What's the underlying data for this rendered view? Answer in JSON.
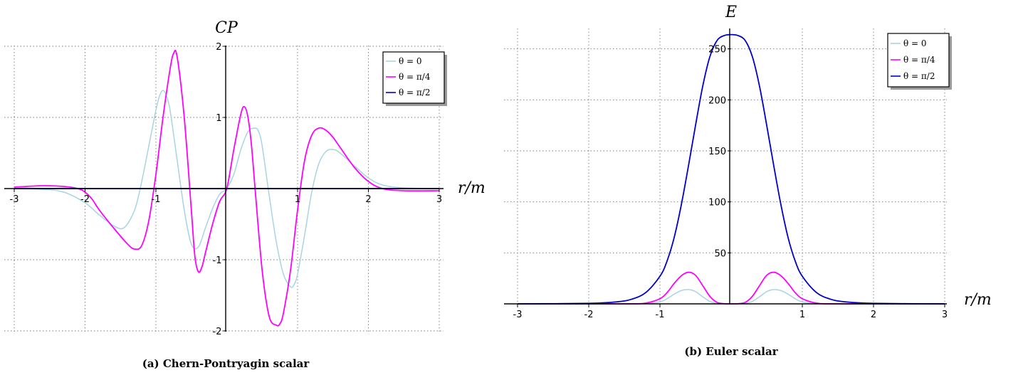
{
  "chart_data": [
    {
      "type": "line",
      "title": "CP",
      "xlabel": "r/m",
      "caption": "(a) Chern-Pontryagin scalar",
      "xlim": [
        -3,
        3
      ],
      "ylim": [
        -2,
        2
      ],
      "x_ticks": [
        "-3",
        "-2",
        "-1",
        "1",
        "2",
        "3"
      ],
      "y_ticks": [
        "2",
        "1",
        "-1",
        "-2"
      ],
      "grid": true,
      "legend_position": "top-right",
      "series": [
        {
          "name": "θ = 0",
          "color": "#a8d4e2",
          "x": [
            -3.0,
            -2.6,
            -2.3,
            -2.0,
            -1.8,
            -1.6,
            -1.45,
            -1.3,
            -1.2,
            -1.1,
            -1.0,
            -0.95,
            -0.9,
            -0.85,
            -0.8,
            -0.7,
            -0.6,
            -0.5,
            -0.4,
            -0.3,
            -0.2,
            -0.1,
            0.0,
            0.1,
            0.2,
            0.3,
            0.4,
            0.45,
            0.5,
            0.6,
            0.7,
            0.8,
            0.9,
            0.95,
            1.0,
            1.1,
            1.2,
            1.3,
            1.4,
            1.5,
            1.6,
            1.8,
            2.0,
            2.2,
            2.5,
            3.0
          ],
          "y": [
            0.0,
            -0.01,
            -0.05,
            -0.2,
            -0.37,
            -0.52,
            -0.55,
            -0.3,
            0.1,
            0.6,
            1.1,
            1.3,
            1.38,
            1.3,
            1.1,
            0.4,
            -0.3,
            -0.78,
            -0.82,
            -0.55,
            -0.28,
            -0.08,
            0.0,
            0.2,
            0.55,
            0.8,
            0.85,
            0.8,
            0.6,
            -0.1,
            -0.75,
            -1.2,
            -1.38,
            -1.35,
            -1.2,
            -0.65,
            -0.05,
            0.35,
            0.52,
            0.55,
            0.5,
            0.32,
            0.15,
            0.05,
            0.01,
            0.0
          ]
        },
        {
          "name": "θ = π/4",
          "color": "#ff00ff",
          "x": [
            -3.0,
            -2.6,
            -2.3,
            -2.1,
            -2.0,
            -1.9,
            -1.8,
            -1.6,
            -1.4,
            -1.3,
            -1.2,
            -1.1,
            -1.0,
            -0.9,
            -0.8,
            -0.75,
            -0.7,
            -0.6,
            -0.5,
            -0.45,
            -0.4,
            -0.35,
            -0.3,
            -0.2,
            -0.1,
            0.0,
            0.1,
            0.2,
            0.25,
            0.3,
            0.35,
            0.4,
            0.5,
            0.6,
            0.7,
            0.75,
            0.8,
            0.9,
            1.0,
            1.1,
            1.2,
            1.3,
            1.4,
            1.5,
            1.6,
            1.8,
            2.0,
            2.2,
            2.5,
            3.0
          ],
          "y": [
            0.02,
            0.04,
            0.03,
            0.0,
            -0.05,
            -0.15,
            -0.3,
            -0.55,
            -0.78,
            -0.85,
            -0.8,
            -0.45,
            0.2,
            1.0,
            1.68,
            1.9,
            1.85,
            1.0,
            -0.3,
            -0.95,
            -1.17,
            -1.1,
            -0.9,
            -0.5,
            -0.18,
            0.0,
            0.55,
            1.05,
            1.15,
            1.0,
            0.6,
            0.0,
            -1.15,
            -1.8,
            -1.92,
            -1.9,
            -1.75,
            -1.15,
            -0.3,
            0.4,
            0.75,
            0.85,
            0.82,
            0.72,
            0.58,
            0.3,
            0.1,
            0.0,
            -0.03,
            -0.03
          ]
        },
        {
          "name": "θ = π/2",
          "color": "#0000cc",
          "x": [
            -3.0,
            3.0
          ],
          "y": [
            0.0,
            0.0
          ]
        }
      ]
    },
    {
      "type": "line",
      "title": "E",
      "xlabel": "r/m",
      "caption": "(b) Euler scalar",
      "xlim": [
        -3,
        3
      ],
      "ylim": [
        0,
        270
      ],
      "x_ticks": [
        "-3",
        "-2",
        "-1",
        "1",
        "2",
        "3"
      ],
      "y_ticks": [
        "250",
        "200",
        "150",
        "100",
        "50"
      ],
      "grid": true,
      "legend_position": "top-right",
      "series": [
        {
          "name": "θ = 0",
          "color": "#a8d4e2",
          "x": [
            -3.0,
            -1.5,
            -1.2,
            -1.0,
            -0.9,
            -0.8,
            -0.7,
            -0.6,
            -0.5,
            -0.4,
            -0.3,
            -0.2,
            -0.1,
            0.0,
            0.1,
            0.2,
            0.3,
            0.4,
            0.5,
            0.6,
            0.7,
            0.8,
            0.9,
            1.0,
            1.2,
            1.5,
            3.0
          ],
          "y": [
            0.0,
            0.0,
            0.3,
            2.0,
            5.0,
            9.5,
            13.0,
            14.0,
            12.0,
            7.0,
            2.5,
            0.4,
            0.05,
            0.0,
            0.05,
            0.4,
            2.5,
            7.0,
            12.0,
            14.0,
            13.0,
            9.5,
            5.0,
            2.0,
            0.3,
            0.0,
            0.0
          ]
        },
        {
          "name": "θ = π/4",
          "color": "#ff00ff",
          "x": [
            -3.0,
            -1.5,
            -1.2,
            -1.0,
            -0.9,
            -0.8,
            -0.7,
            -0.6,
            -0.5,
            -0.4,
            -0.3,
            -0.2,
            -0.1,
            0.0,
            0.1,
            0.2,
            0.3,
            0.4,
            0.5,
            0.6,
            0.7,
            0.8,
            0.9,
            1.0,
            1.2,
            1.5,
            3.0
          ],
          "y": [
            0.0,
            0.0,
            0.8,
            5.0,
            11.0,
            20.0,
            27.5,
            31.0,
            28.0,
            18.0,
            7.5,
            1.5,
            0.2,
            0.0,
            0.2,
            1.5,
            7.5,
            18.0,
            28.0,
            31.0,
            27.5,
            20.0,
            11.0,
            5.0,
            0.8,
            0.0,
            0.0
          ]
        },
        {
          "name": "θ = π/2",
          "color": "#0000cc",
          "x": [
            -3.0,
            -2.0,
            -1.6,
            -1.4,
            -1.2,
            -1.0,
            -0.9,
            -0.8,
            -0.7,
            -0.6,
            -0.5,
            -0.4,
            -0.3,
            -0.2,
            -0.1,
            0.0,
            0.1,
            0.2,
            0.3,
            0.4,
            0.5,
            0.6,
            0.7,
            0.8,
            0.9,
            1.0,
            1.2,
            1.4,
            1.6,
            2.0,
            3.0
          ],
          "y": [
            0.0,
            0.5,
            2.0,
            4.5,
            11.0,
            27.0,
            42.0,
            65.0,
            97.0,
            135.0,
            175.0,
            213.0,
            242.0,
            258.0,
            263.0,
            264.0,
            263.0,
            258.0,
            242.0,
            213.0,
            175.0,
            135.0,
            97.0,
            65.0,
            42.0,
            27.0,
            11.0,
            4.5,
            2.0,
            0.5,
            0.0
          ]
        }
      ]
    }
  ]
}
